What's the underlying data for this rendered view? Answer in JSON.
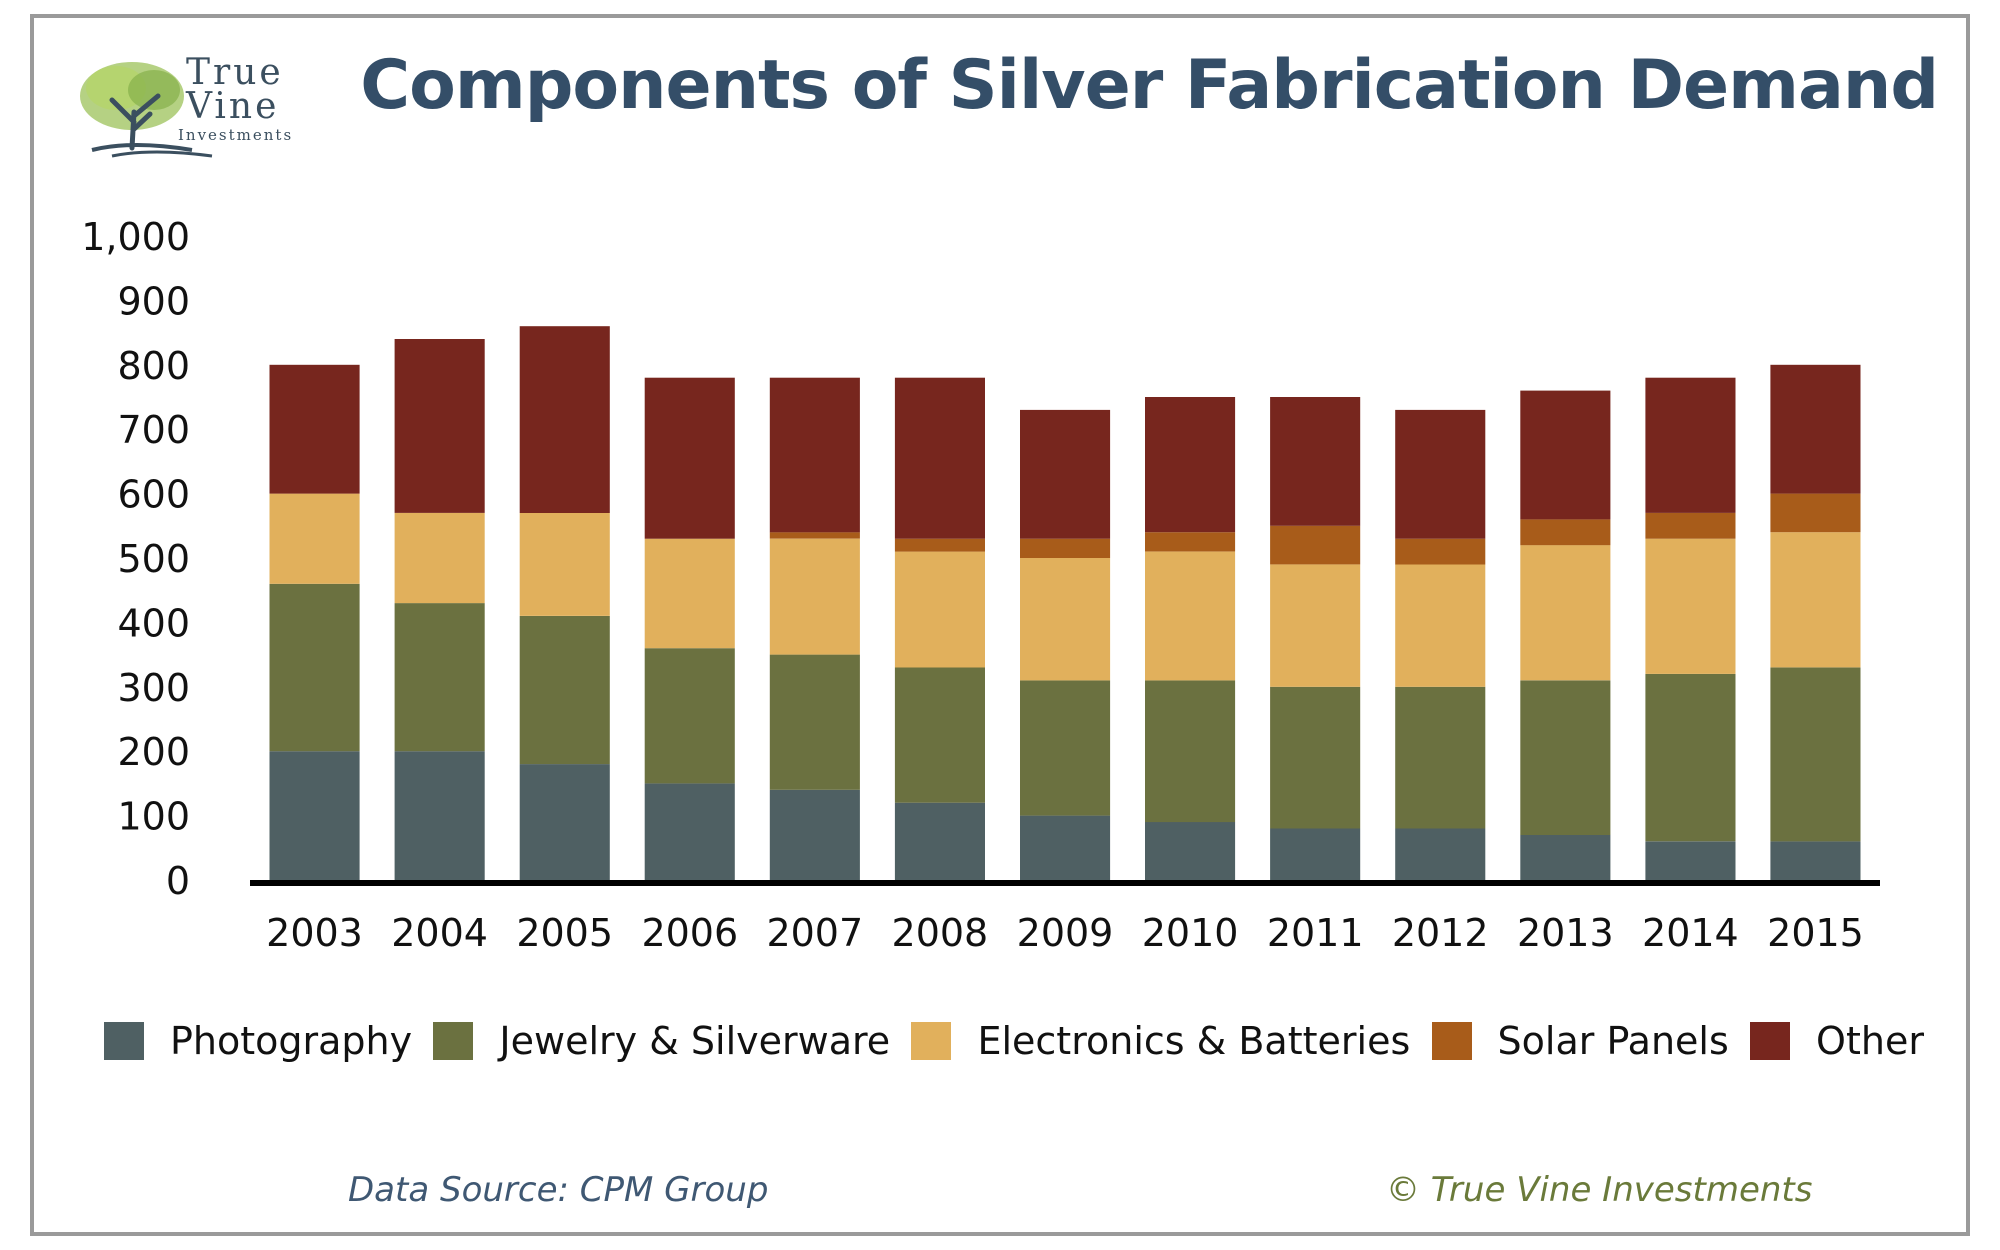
{
  "header": {
    "title": "Components of Silver Fabrication Demand",
    "logo_line1": "True",
    "logo_line2": "Vine",
    "logo_line3": "Investments"
  },
  "footer": {
    "source": "Data Source: CPM Group",
    "copyright": "© True Vine Investments"
  },
  "colors": {
    "photography": "#4f6063",
    "jewelry": "#6b7140",
    "electronics": "#e1b05c",
    "solar": "#a85c1a",
    "other": "#77261e",
    "title": "#344e68",
    "axis": "#000000"
  },
  "chart_data": {
    "type": "bar",
    "stacked": true,
    "title": "Components of Silver Fabrication Demand",
    "xlabel": "",
    "ylabel": "",
    "ylim": [
      0,
      1000
    ],
    "yticks": [
      0,
      100,
      200,
      300,
      400,
      500,
      600,
      700,
      800,
      900,
      1000
    ],
    "ytick_labels": [
      "0",
      "100",
      "200",
      "300",
      "400",
      "500",
      "600",
      "700",
      "800",
      "900",
      "1,000"
    ],
    "grid": false,
    "legend_position": "bottom",
    "categories": [
      "2003",
      "2004",
      "2005",
      "2006",
      "2007",
      "2008",
      "2009",
      "2010",
      "2011",
      "2012",
      "2013",
      "2014",
      "2015"
    ],
    "series": [
      {
        "name": "Photography",
        "color": "#4f6063",
        "values": [
          200,
          200,
          180,
          150,
          140,
          120,
          100,
          90,
          80,
          80,
          70,
          60,
          60
        ]
      },
      {
        "name": "Jewelry & Silverware",
        "color": "#6b7140",
        "values": [
          260,
          230,
          230,
          210,
          210,
          210,
          210,
          220,
          220,
          220,
          240,
          260,
          270
        ]
      },
      {
        "name": "Electronics & Batteries",
        "color": "#e1b05c",
        "values": [
          140,
          140,
          160,
          170,
          180,
          180,
          190,
          200,
          190,
          190,
          210,
          210,
          210
        ]
      },
      {
        "name": "Solar Panels",
        "color": "#a85c1a",
        "values": [
          0,
          0,
          0,
          0,
          10,
          20,
          30,
          30,
          60,
          40,
          40,
          40,
          60
        ]
      },
      {
        "name": "Other",
        "color": "#77261e",
        "values": [
          200,
          270,
          290,
          250,
          240,
          250,
          200,
          210,
          200,
          200,
          200,
          210,
          200
        ]
      }
    ]
  }
}
